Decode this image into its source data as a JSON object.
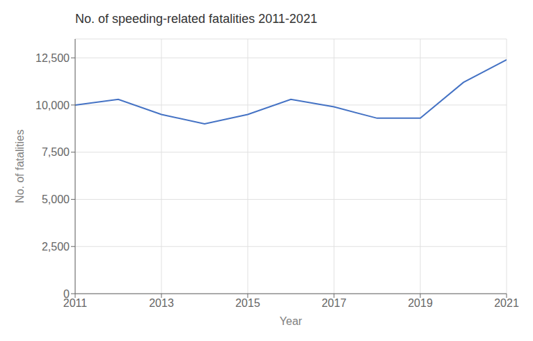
{
  "chart_data": {
    "type": "line",
    "title": "No. of speeding-related fatalities 2011-2021",
    "xlabel": "Year",
    "ylabel": "No. of fatalities",
    "x": [
      2011,
      2012,
      2013,
      2014,
      2015,
      2016,
      2017,
      2018,
      2019,
      2020,
      2021
    ],
    "values": [
      10000,
      10300,
      9500,
      9000,
      9500,
      10300,
      9900,
      9300,
      9300,
      11200,
      12400
    ],
    "color": "#4472c4",
    "xlim": [
      2011,
      2021
    ],
    "xticks": [
      2011,
      2013,
      2015,
      2017,
      2019,
      2021
    ],
    "ylim": [
      0,
      13500
    ],
    "yticks": [
      0,
      {
        "value": 2500,
        "label": "2,500"
      },
      {
        "value": 5000,
        "label": "5,000"
      },
      {
        "value": 7500,
        "label": "7,500"
      },
      {
        "value": 10000,
        "label": "10,000"
      },
      {
        "value": 12500,
        "label": "12,500"
      }
    ],
    "grid": true
  }
}
